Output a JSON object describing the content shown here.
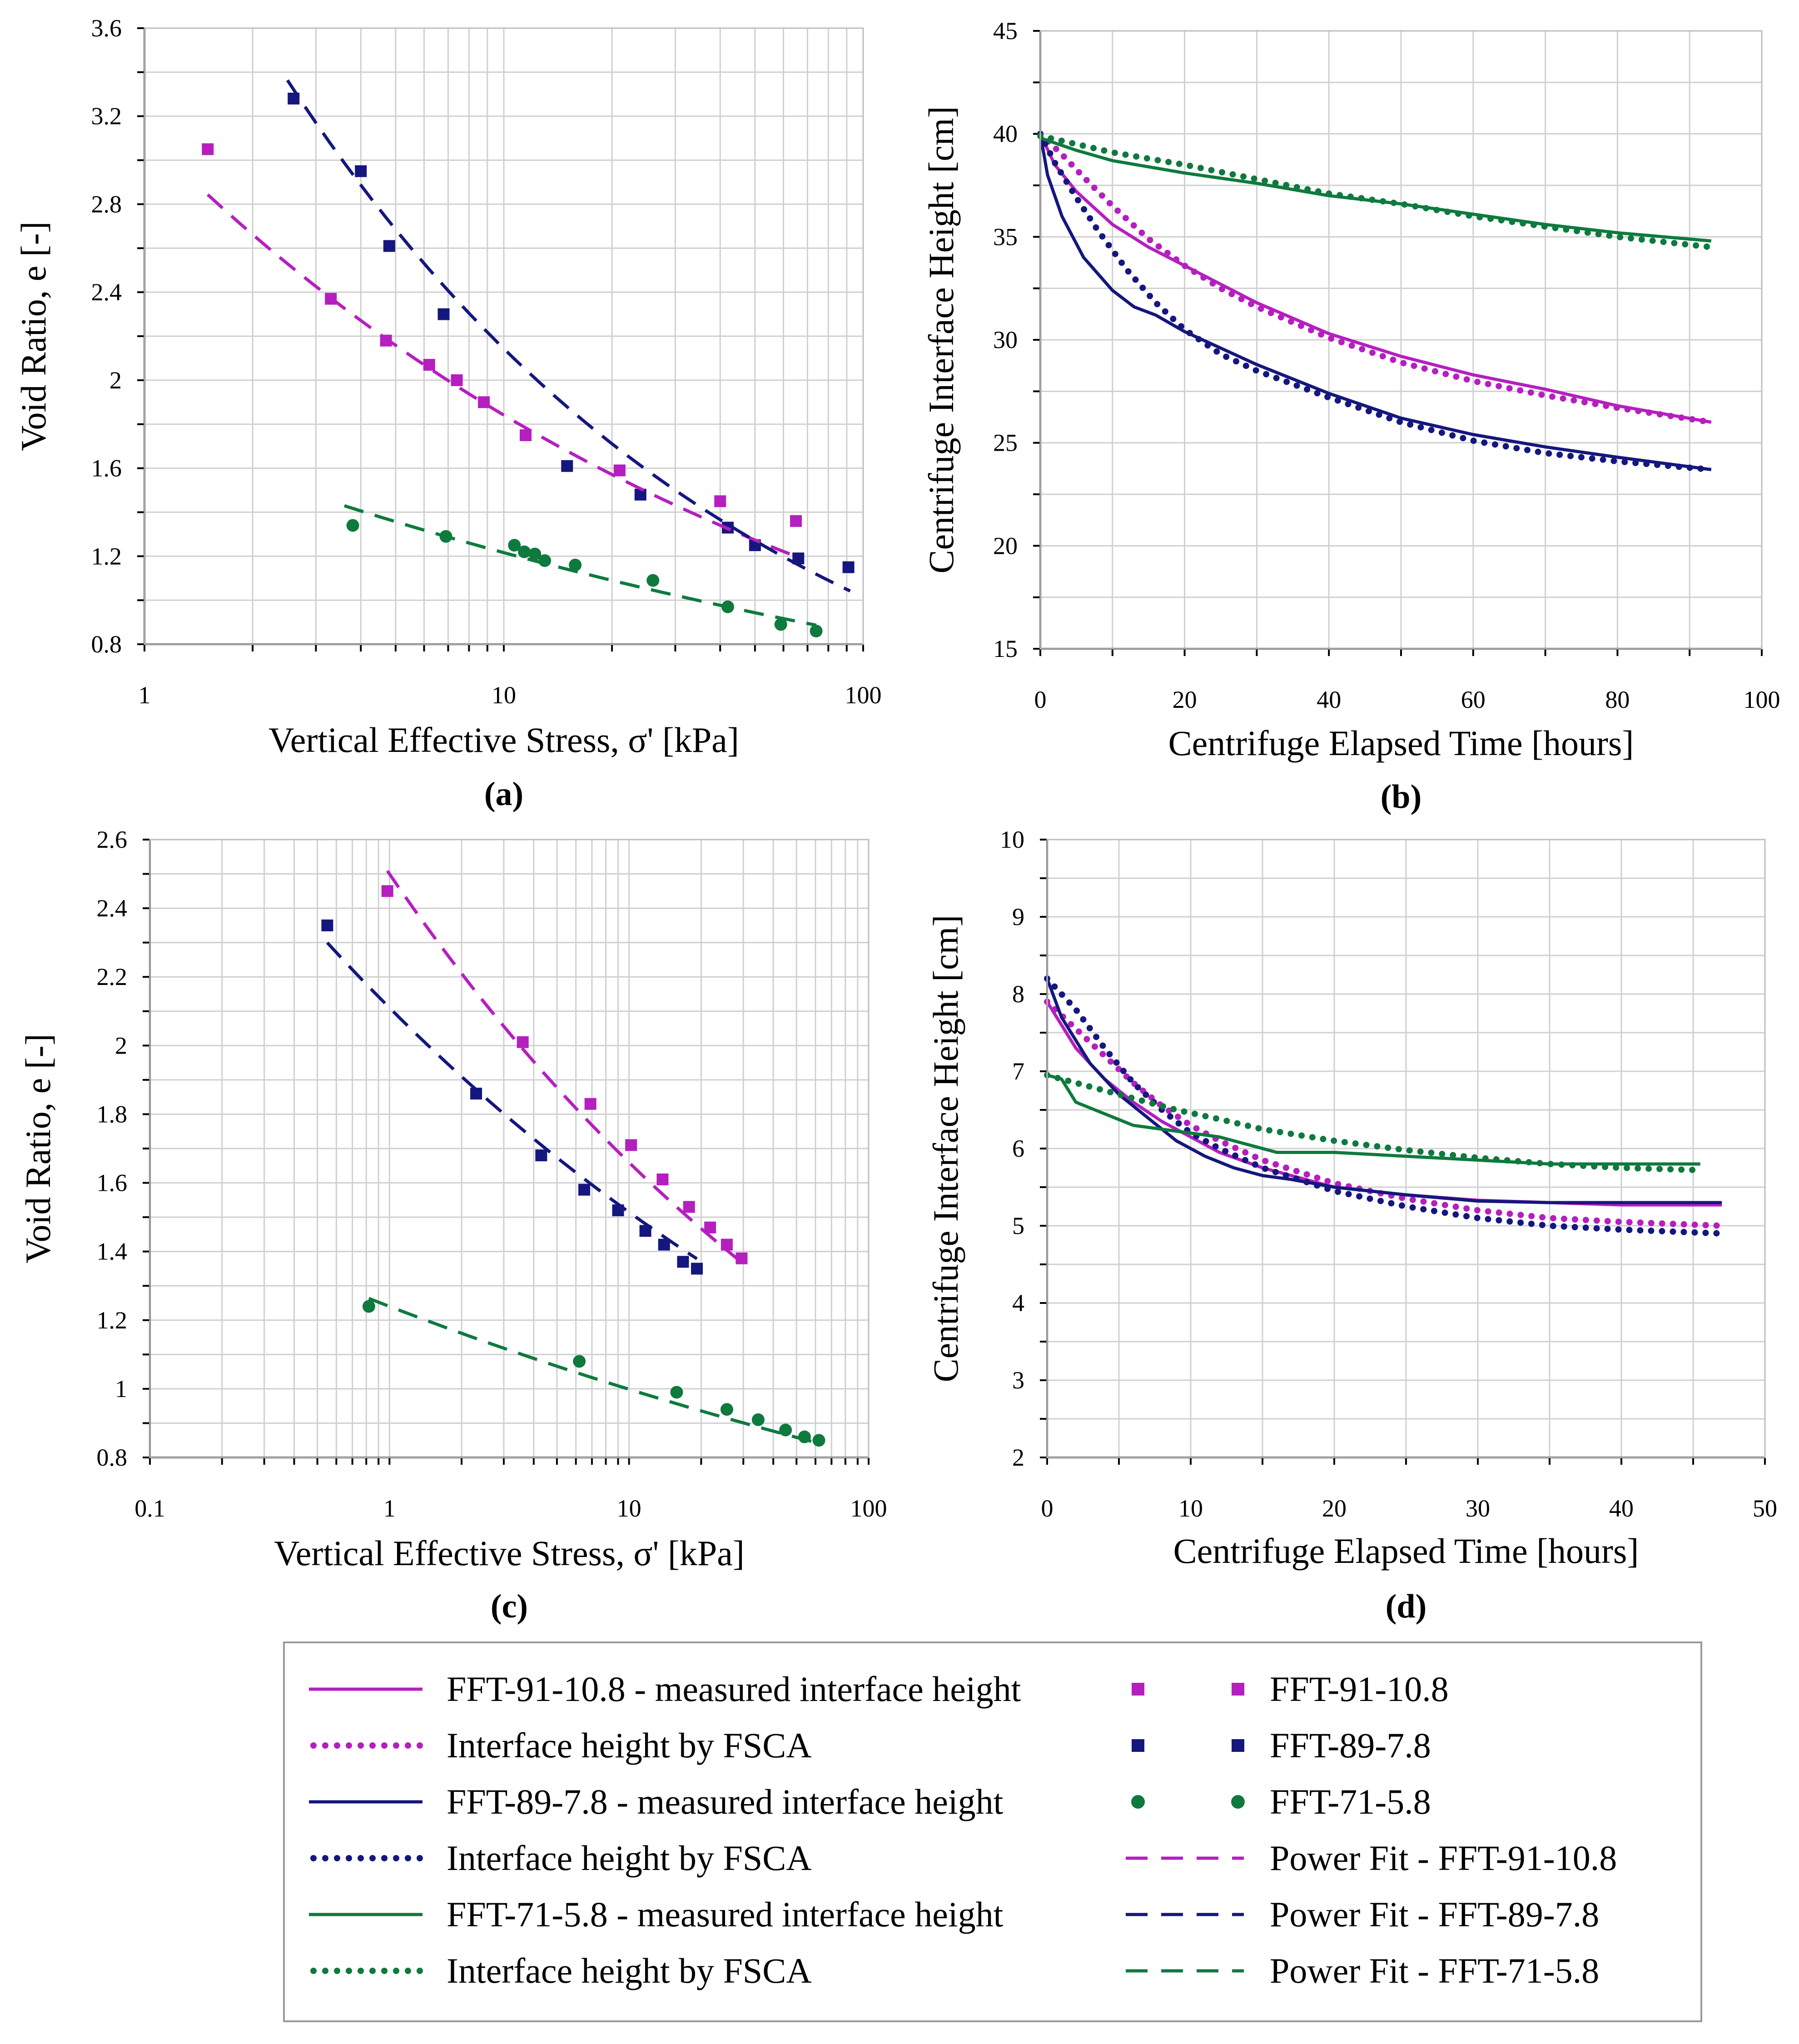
{
  "colors": {
    "magenta": "#B51FBF",
    "navy": "#15177E",
    "green": "#0E7A3E"
  },
  "chart_data": [
    {
      "id": "a",
      "panel": "(a)",
      "type": "scatter",
      "xscale": "log",
      "xlim": [
        1,
        100
      ],
      "ylim": [
        0.8,
        3.6
      ],
      "yticks": [
        0.8,
        1.2,
        1.6,
        2,
        2.4,
        2.8,
        3.2,
        3.6
      ],
      "ytick_labels": [
        "0.8",
        "1.2",
        "1.6",
        "2",
        "2.4",
        "2.8",
        "3.2",
        "3.6"
      ],
      "xticks": [
        1,
        10,
        100
      ],
      "xtick_labels": [
        "1",
        "10",
        "100"
      ],
      "xlabel": "Vertical Effective Stress, σ' [kPa]",
      "ylabel": "Void Ratio, e [-]",
      "series": [
        {
          "name": "FFT-91-10.8",
          "kind": "points",
          "marker": "square",
          "color": "magenta",
          "x": [
            1.5,
            3.3,
            4.7,
            6.2,
            7.4,
            8.8,
            11.5,
            21,
            40,
            65
          ],
          "y": [
            3.05,
            2.37,
            2.18,
            2.07,
            2.0,
            1.9,
            1.75,
            1.59,
            1.45,
            1.36
          ]
        },
        {
          "name": "FFT-89-7.8",
          "kind": "points",
          "marker": "square",
          "color": "navy",
          "x": [
            2.6,
            4.0,
            4.8,
            6.8,
            15,
            24,
            42,
            50,
            66,
            91
          ],
          "y": [
            3.28,
            2.95,
            2.61,
            2.3,
            1.61,
            1.48,
            1.33,
            1.25,
            1.19,
            1.15
          ]
        },
        {
          "name": "FFT-71-5.8",
          "kind": "points",
          "marker": "circle",
          "color": "green",
          "x": [
            3.8,
            6.9,
            10.7,
            11.4,
            12.2,
            13.0,
            15.8,
            26,
            42,
            59,
            74
          ],
          "y": [
            1.34,
            1.29,
            1.25,
            1.22,
            1.21,
            1.18,
            1.16,
            1.09,
            0.97,
            0.89,
            0.86
          ]
        },
        {
          "name": "Power Fit - FFT-91-10.8",
          "kind": "fit",
          "color": "magenta",
          "a": 3.12,
          "b": -0.229,
          "x_range": [
            1.5,
            65
          ]
        },
        {
          "name": "Power Fit - FFT-89-7.8",
          "kind": "fit",
          "color": "navy",
          "a": 4.53,
          "b": -0.325,
          "x_range": [
            2.5,
            92
          ]
        },
        {
          "name": "Power Fit - FFT-71-5.8",
          "kind": "fit",
          "color": "green",
          "a": 1.75,
          "b": -0.158,
          "x_range": [
            3.6,
            74
          ]
        }
      ]
    },
    {
      "id": "b",
      "panel": "(b)",
      "type": "line",
      "xscale": "linear",
      "xlim": [
        0,
        100
      ],
      "ylim": [
        15,
        45
      ],
      "xticks": [
        0,
        20,
        40,
        60,
        80,
        100
      ],
      "xtick_labels": [
        "0",
        "20",
        "40",
        "60",
        "80",
        "100"
      ],
      "yticks": [
        15,
        20,
        25,
        30,
        35,
        40,
        45
      ],
      "ytick_labels": [
        "15",
        "20",
        "25",
        "30",
        "35",
        "40",
        "45"
      ],
      "xlabel": "Centrifuge Elapsed Time [hours]",
      "ylabel": "Centrifuge Interface Height [cm]",
      "series": [
        {
          "name": "FFT-91-10.8 - measured interface height",
          "kind": "solid",
          "color": "magenta",
          "x": [
            0,
            2,
            5,
            10,
            15,
            20,
            30,
            40,
            50,
            60,
            70,
            80,
            93
          ],
          "y": [
            40,
            38.5,
            37.2,
            35.6,
            34.5,
            33.6,
            31.8,
            30.3,
            29.2,
            28.3,
            27.6,
            26.8,
            26.0
          ]
        },
        {
          "name": "Interface height by FSCA (FFT-91-10.8)",
          "kind": "dotted",
          "color": "magenta",
          "x": [
            0,
            3,
            6,
            10,
            15,
            20,
            25,
            30,
            40,
            50,
            60,
            70,
            80,
            93
          ],
          "y": [
            40,
            39,
            37.9,
            36.5,
            34.9,
            33.6,
            32.5,
            31.6,
            30.1,
            28.9,
            28.0,
            27.3,
            26.7,
            26.0
          ]
        },
        {
          "name": "FFT-89-7.8 - measured interface height",
          "kind": "solid",
          "color": "navy",
          "x": [
            0,
            1,
            3,
            6,
            10,
            13,
            16,
            20,
            30,
            40,
            50,
            60,
            70,
            80,
            93
          ],
          "y": [
            40,
            38,
            36,
            34,
            32.4,
            31.6,
            31.2,
            30.4,
            28.8,
            27.4,
            26.2,
            25.4,
            24.8,
            24.3,
            23.7
          ]
        },
        {
          "name": "Interface height by FSCA (FFT-89-7.8)",
          "kind": "dotted",
          "color": "navy",
          "x": [
            0,
            2,
            5,
            8,
            12,
            16,
            20,
            25,
            30,
            40,
            50,
            60,
            70,
            80,
            93
          ],
          "y": [
            40,
            38.6,
            36.9,
            35.3,
            33.4,
            31.8,
            30.5,
            29.3,
            28.5,
            27.2,
            26.0,
            25.1,
            24.5,
            24.1,
            23.7
          ]
        },
        {
          "name": "FFT-71-5.8 - measured interface height",
          "kind": "solid",
          "color": "green",
          "x": [
            0,
            5,
            10,
            20,
            30,
            40,
            50,
            60,
            70,
            80,
            93
          ],
          "y": [
            39.8,
            39.2,
            38.7,
            38.1,
            37.6,
            37.0,
            36.6,
            36.1,
            35.6,
            35.2,
            34.8
          ]
        },
        {
          "name": "Interface height by FSCA (FFT-71-5.8)",
          "kind": "dotted",
          "color": "green",
          "x": [
            0,
            5,
            10,
            20,
            30,
            40,
            50,
            60,
            70,
            80,
            93
          ],
          "y": [
            39.9,
            39.5,
            39.1,
            38.5,
            37.8,
            37.1,
            36.6,
            36.0,
            35.5,
            35.0,
            34.5
          ]
        }
      ]
    },
    {
      "id": "c",
      "panel": "(c)",
      "type": "scatter",
      "xscale": "log",
      "xlim": [
        0.1,
        100
      ],
      "ylim": [
        0.8,
        2.6
      ],
      "yticks": [
        0.8,
        1,
        1.2,
        1.4,
        1.6,
        1.8,
        2,
        2.2,
        2.4,
        2.6
      ],
      "ytick_labels": [
        "0.8",
        "1",
        "1.2",
        "1.4",
        "1.6",
        "1.8",
        "2",
        "2.2",
        "2.4",
        "2.6"
      ],
      "xticks": [
        0.1,
        1,
        10,
        100
      ],
      "xtick_labels": [
        "0.1",
        "1",
        "10",
        "100"
      ],
      "xlabel": "Vertical Effective Stress, σ' [kPa]",
      "ylabel": "Void Ratio, e [-]",
      "series": [
        {
          "name": "FFT-91-10.8",
          "kind": "points",
          "marker": "square",
          "color": "magenta",
          "x": [
            0.98,
            3.6,
            6.9,
            10.2,
            13.8,
            17.8,
            21.8,
            25.6,
            29.5
          ],
          "y": [
            2.45,
            2.01,
            1.83,
            1.71,
            1.61,
            1.53,
            1.47,
            1.42,
            1.38
          ]
        },
        {
          "name": "FFT-89-7.8",
          "kind": "points",
          "marker": "square",
          "color": "navy",
          "x": [
            0.55,
            2.3,
            4.3,
            6.5,
            9.0,
            11.7,
            14.0,
            16.8,
            19.2
          ],
          "y": [
            2.35,
            1.86,
            1.68,
            1.58,
            1.52,
            1.46,
            1.42,
            1.37,
            1.35
          ]
        },
        {
          "name": "FFT-71-5.8",
          "kind": "points",
          "marker": "circle",
          "color": "green",
          "x": [
            0.82,
            6.2,
            15.8,
            25.6,
            34.6,
            45,
            54,
            62
          ],
          "y": [
            1.24,
            1.08,
            0.99,
            0.94,
            0.91,
            0.88,
            0.86,
            0.85
          ]
        },
        {
          "name": "Power Fit - FFT-91-10.8",
          "kind": "fit",
          "color": "magenta",
          "a": 2.5,
          "b": -0.178,
          "x_range": [
            0.98,
            29.5
          ]
        },
        {
          "name": "Power Fit - FFT-89-7.8",
          "kind": "fit",
          "color": "navy",
          "a": 2.11,
          "b": -0.144,
          "x_range": [
            0.55,
            19.2
          ]
        },
        {
          "name": "Power Fit - FFT-71-5.8",
          "kind": "fit",
          "color": "green",
          "a": 1.24,
          "b": -0.094,
          "x_range": [
            0.82,
            62
          ]
        }
      ]
    },
    {
      "id": "d",
      "panel": "(d)",
      "type": "line",
      "xscale": "linear",
      "xlim": [
        0,
        50
      ],
      "ylim": [
        2,
        10
      ],
      "xticks": [
        0,
        10,
        20,
        30,
        40,
        50
      ],
      "xtick_labels": [
        "0",
        "10",
        "20",
        "30",
        "40",
        "50"
      ],
      "yticks": [
        2,
        3,
        4,
        5,
        6,
        7,
        8,
        9,
        10
      ],
      "ytick_labels": [
        "2",
        "3",
        "4",
        "5",
        "6",
        "7",
        "8",
        "9",
        "10"
      ],
      "xlabel": "Centrifuge Elapsed Time [hours]",
      "ylabel": "Centrifuge Interface Height [cm]",
      "series": [
        {
          "name": "FFT-91-10.8 - measured interface height",
          "kind": "solid",
          "color": "magenta",
          "x": [
            0,
            1,
            2,
            4,
            6,
            8,
            10,
            12,
            15,
            18,
            20,
            25,
            30,
            35,
            40,
            47
          ],
          "y": [
            7.9,
            7.6,
            7.3,
            6.9,
            6.6,
            6.35,
            6.15,
            5.95,
            5.75,
            5.6,
            5.5,
            5.4,
            5.33,
            5.3,
            5.27,
            5.27
          ]
        },
        {
          "name": "Interface height by FSCA (FFT-91-10.8)",
          "kind": "dotted",
          "color": "magenta",
          "x": [
            0,
            2,
            4,
            6,
            8,
            10,
            12,
            15,
            20,
            25,
            30,
            35,
            40,
            47
          ],
          "y": [
            7.9,
            7.55,
            7.2,
            6.85,
            6.55,
            6.3,
            6.1,
            5.85,
            5.55,
            5.35,
            5.2,
            5.1,
            5.05,
            5.0
          ]
        },
        {
          "name": "FFT-89-7.8 - measured interface height",
          "kind": "solid",
          "color": "navy",
          "x": [
            0,
            1,
            2,
            3,
            5,
            7,
            9,
            11,
            13,
            15,
            17,
            20,
            25,
            30,
            35,
            40,
            47
          ],
          "y": [
            8.2,
            7.7,
            7.4,
            7.1,
            6.7,
            6.4,
            6.1,
            5.9,
            5.75,
            5.65,
            5.6,
            5.5,
            5.4,
            5.32,
            5.3,
            5.3,
            5.3
          ]
        },
        {
          "name": "Interface height by FSCA (FFT-89-7.8)",
          "kind": "dotted",
          "color": "navy",
          "x": [
            0,
            2,
            4,
            6,
            8,
            10,
            12,
            15,
            20,
            25,
            30,
            35,
            40,
            47
          ],
          "y": [
            8.2,
            7.8,
            7.3,
            6.85,
            6.5,
            6.2,
            6.0,
            5.75,
            5.45,
            5.25,
            5.1,
            5.0,
            4.95,
            4.9
          ]
        },
        {
          "name": "FFT-71-5.8 - measured interface height",
          "kind": "solid",
          "color": "green",
          "x": [
            0,
            1,
            2,
            4,
            6,
            8,
            10,
            12,
            14,
            16,
            20,
            25,
            30,
            35,
            40,
            45.5
          ],
          "y": [
            6.95,
            6.9,
            6.6,
            6.45,
            6.3,
            6.25,
            6.2,
            6.15,
            6.05,
            5.95,
            5.95,
            5.9,
            5.85,
            5.8,
            5.8,
            5.8
          ]
        },
        {
          "name": "Interface height by FSCA (FFT-71-5.8)",
          "kind": "dotted",
          "color": "green",
          "x": [
            0,
            3,
            6,
            9,
            12,
            15,
            20,
            25,
            30,
            35,
            40,
            45.5
          ],
          "y": [
            6.95,
            6.8,
            6.65,
            6.5,
            6.38,
            6.25,
            6.1,
            5.98,
            5.88,
            5.8,
            5.75,
            5.72
          ]
        }
      ]
    }
  ],
  "legend": {
    "left": [
      {
        "style": "solid",
        "color": "magenta",
        "label": "FFT-91-10.8 - measured interface height"
      },
      {
        "style": "dotted",
        "color": "magenta",
        "label": "Interface height by FSCA"
      },
      {
        "style": "solid",
        "color": "navy",
        "label": "FFT-89-7.8 - measured interface height"
      },
      {
        "style": "dotted",
        "color": "navy",
        "label": "Interface height by FSCA"
      },
      {
        "style": "solid",
        "color": "green",
        "label": "FFT-71-5.8 - measured interface height"
      },
      {
        "style": "dotted",
        "color": "green",
        "label": "Interface height by FSCA"
      }
    ],
    "right": [
      {
        "style": "square",
        "color": "magenta",
        "label": "FFT-91-10.8"
      },
      {
        "style": "square",
        "color": "navy",
        "label": "FFT-89-7.8"
      },
      {
        "style": "circle",
        "color": "green",
        "label": "FFT-71-5.8"
      },
      {
        "style": "dashed",
        "color": "magenta",
        "label": "Power Fit - FFT-91-10.8"
      },
      {
        "style": "dashed",
        "color": "navy",
        "label": "Power Fit - FFT-89-7.8"
      },
      {
        "style": "dashed",
        "color": "green",
        "label": "Power Fit - FFT-71-5.8"
      }
    ]
  }
}
